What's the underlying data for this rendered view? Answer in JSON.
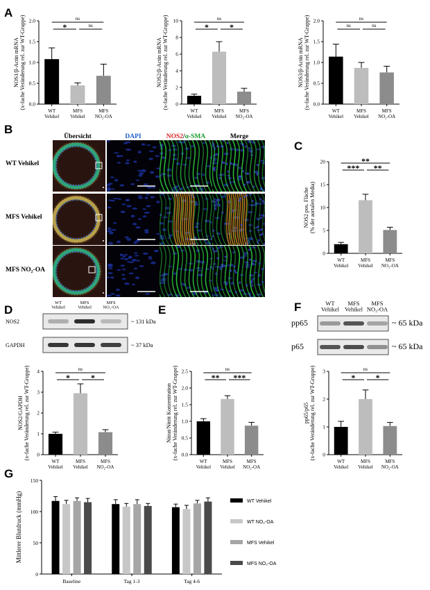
{
  "panels": {
    "A": "A",
    "B": "B",
    "C": "C",
    "D": "D",
    "E": "E",
    "F": "F",
    "G": "G"
  },
  "labels": {
    "ns": "ns",
    "star1": "*",
    "star2": "**",
    "star3": "***"
  },
  "categories_main": [
    {
      "l1": "WT",
      "l2": "Vehikel"
    },
    {
      "l1": "MFS",
      "l2": "Vehikel"
    },
    {
      "l1": "MFS",
      "l2": "NO₂-OA"
    }
  ],
  "colors": {
    "wt": "#000000",
    "mfs": "#bdbdbd",
    "mfsno": "#8c8c8c",
    "mfsno_g": "#8f8f8f",
    "wtno": "#c7c7c7",
    "mfs_g": "#a6a6a6",
    "mfsno2_g": "#4a4a4a"
  },
  "micro": {
    "headers": {
      "overview": "Übersicht",
      "dapi": "DAPI",
      "nos2": "NOS2",
      "slash": "/",
      "asma": "α-SMA",
      "merge": "Merge"
    },
    "rows": [
      "WT Vehikel",
      "MFS Vehikel",
      "MFS NO₂-OA"
    ]
  },
  "blots": {
    "D": {
      "lanes": [
        {
          "l1": "WT",
          "l2": "Vehikel"
        },
        {
          "l1": "MFS",
          "l2": "Vehikel"
        },
        {
          "l1": "MFS",
          "l2": "NO₂-OA"
        }
      ],
      "rows": [
        {
          "name": "NOS2",
          "kda": "~ 131 kDa",
          "intensity": [
            0.25,
            0.9,
            0.2
          ]
        },
        {
          "name": "GAPDH",
          "kda": "~ 37 kDa",
          "intensity": [
            0.85,
            0.85,
            0.8
          ]
        }
      ]
    },
    "F": {
      "lanes": [
        {
          "l1": "WT",
          "l2": "Vehikel"
        },
        {
          "l1": "MFS",
          "l2": "Vehikel"
        },
        {
          "l1": "MFS",
          "l2": "NO₂-OA"
        }
      ],
      "rows": [
        {
          "name": "pp65",
          "kda": "~ 65 kDa",
          "intensity": [
            0.35,
            0.7,
            0.3
          ]
        },
        {
          "name": "p65",
          "kda": "~ 65 kDa",
          "intensity": [
            0.7,
            0.75,
            0.4
          ]
        }
      ]
    }
  },
  "chart_data": [
    {
      "id": "A1",
      "type": "bar",
      "ylabel1": "NOS1/β-Actin mRNA",
      "ylabel2": "(x-fache Veränderung rel. zur WT-Gruppe)",
      "ylim": [
        0,
        2.0
      ],
      "ticks": [
        "0.0",
        "0.5",
        "1.0",
        "1.5",
        "2.0"
      ],
      "values": [
        1.08,
        0.45,
        0.68
      ],
      "errors": [
        0.27,
        0.06,
        0.28
      ],
      "sig": [
        {
          "a": 0,
          "b": 1,
          "label": "*",
          "level": 1
        },
        {
          "a": 1,
          "b": 2,
          "label": "ns",
          "level": 1
        },
        {
          "a": 0,
          "b": 2,
          "label": "ns",
          "level": 2
        }
      ]
    },
    {
      "id": "A2",
      "type": "bar",
      "ylabel1": "NOS2/β-Actin mRNA",
      "ylabel2": "(x-fache Veränderung rel. zur WT-Gruppe)",
      "ylim": [
        0,
        10
      ],
      "ticks": [
        "0",
        "2",
        "4",
        "6",
        "8",
        "10"
      ],
      "values": [
        1.0,
        6.3,
        1.5
      ],
      "errors": [
        0.2,
        1.2,
        0.4
      ],
      "sig": [
        {
          "a": 0,
          "b": 1,
          "label": "*",
          "level": 1
        },
        {
          "a": 1,
          "b": 2,
          "label": "*",
          "level": 1
        },
        {
          "a": 0,
          "b": 2,
          "label": "ns",
          "level": 2
        }
      ]
    },
    {
      "id": "A3",
      "type": "bar",
      "ylabel1": "NOS3/β-Actin mRNA",
      "ylabel2": "(x-fache Veränderung rel. zur WT-Gruppe)",
      "ylim": [
        0,
        2.0
      ],
      "ticks": [
        "0.0",
        "0.5",
        "1.0",
        "1.5",
        "2.0"
      ],
      "values": [
        1.14,
        0.87,
        0.76
      ],
      "errors": [
        0.3,
        0.13,
        0.15
      ],
      "sig": [
        {
          "a": 0,
          "b": 1,
          "label": "ns",
          "level": 1
        },
        {
          "a": 1,
          "b": 2,
          "label": "ns",
          "level": 1
        },
        {
          "a": 0,
          "b": 2,
          "label": "ns",
          "level": 2
        }
      ]
    },
    {
      "id": "C",
      "type": "bar",
      "ylabel1": "NOS2 pos. Fläche",
      "ylabel2": "(% der aortalen Media)",
      "ylim": [
        0,
        20
      ],
      "ticks": [
        "0",
        "5",
        "10",
        "15",
        "20"
      ],
      "values": [
        2.0,
        11.6,
        5.1
      ],
      "errors": [
        0.4,
        1.3,
        0.6
      ],
      "sig": [
        {
          "a": 0,
          "b": 1,
          "label": "***",
          "level": 1
        },
        {
          "a": 1,
          "b": 2,
          "label": "**",
          "level": 1
        },
        {
          "a": 0,
          "b": 2,
          "label": "**",
          "level": 2
        }
      ]
    },
    {
      "id": "D",
      "type": "bar",
      "ylabel1": "NOS2/GAPDH",
      "ylabel2": "(x-fache Veränderung rel. zur WT-Gruppe)",
      "ylim": [
        0,
        4
      ],
      "ticks": [
        "0",
        "1",
        "2",
        "3",
        "4"
      ],
      "values": [
        1.0,
        2.95,
        1.08
      ],
      "errors": [
        0.08,
        0.45,
        0.12
      ],
      "sig": [
        {
          "a": 0,
          "b": 1,
          "label": "*",
          "level": 1
        },
        {
          "a": 1,
          "b": 2,
          "label": "*",
          "level": 1
        },
        {
          "a": 0,
          "b": 2,
          "label": "ns",
          "level": 2
        }
      ]
    },
    {
      "id": "E",
      "type": "bar",
      "ylabel1": "Nitrat/Nitrit Konzentration",
      "ylabel2": "(x-fache Veränderung rel. zur WT-Gruppe)",
      "ylim": [
        0,
        2.5
      ],
      "ticks": [
        "0.0",
        "0.5",
        "1.0",
        "1.5",
        "2.0",
        "2.5"
      ],
      "values": [
        1.0,
        1.67,
        0.87
      ],
      "errors": [
        0.08,
        0.1,
        0.1
      ],
      "sig": [
        {
          "a": 0,
          "b": 1,
          "label": "**",
          "level": 1
        },
        {
          "a": 1,
          "b": 2,
          "label": "***",
          "level": 1
        },
        {
          "a": 0,
          "b": 2,
          "label": "ns",
          "level": 2
        }
      ]
    },
    {
      "id": "F",
      "type": "bar",
      "ylabel1": "pp65/p65",
      "ylabel2": "(x-fache Veränderung rel. zur WT-Gruppe)",
      "ylim": [
        0,
        3
      ],
      "ticks": [
        "0",
        "1",
        "2",
        "3"
      ],
      "values": [
        1.0,
        2.0,
        1.03
      ],
      "errors": [
        0.2,
        0.33,
        0.13
      ],
      "sig": [
        {
          "a": 0,
          "b": 1,
          "label": "*",
          "level": 1
        },
        {
          "a": 1,
          "b": 2,
          "label": "*",
          "level": 1
        },
        {
          "a": 0,
          "b": 2,
          "label": "ns",
          "level": 2
        }
      ]
    },
    {
      "id": "G",
      "type": "bar",
      "ylabel": "Mittlerer Blutdruck (mmHg)",
      "ylim": [
        0,
        150
      ],
      "ticks": [
        "0",
        "50",
        "100",
        "150"
      ],
      "categories": [
        "Baseline",
        "Tag 1-3",
        "Tag 4-6"
      ],
      "series": [
        {
          "name": "WT Vehikel",
          "values": [
            117,
            112,
            107
          ],
          "errors": [
            7,
            7,
            5
          ]
        },
        {
          "name": "WT NO₂-OA",
          "values": [
            112,
            108,
            104
          ],
          "errors": [
            6,
            5,
            6
          ]
        },
        {
          "name": "MFS Vehikel",
          "values": [
            117,
            112,
            113
          ],
          "errors": [
            5,
            7,
            5
          ]
        },
        {
          "name": "MFS NO₂-OA",
          "values": [
            115,
            109,
            116
          ],
          "errors": [
            6,
            4,
            6
          ]
        }
      ],
      "legend": "right"
    }
  ]
}
